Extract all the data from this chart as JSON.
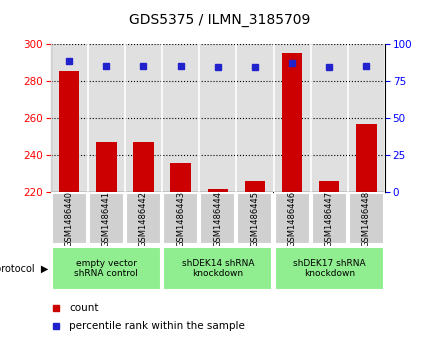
{
  "title": "GDS5375 / ILMN_3185709",
  "samples": [
    "GSM1486440",
    "GSM1486441",
    "GSM1486442",
    "GSM1486443",
    "GSM1486444",
    "GSM1486445",
    "GSM1486446",
    "GSM1486447",
    "GSM1486448"
  ],
  "counts": [
    285,
    247,
    247,
    236,
    222,
    226,
    295,
    226,
    257
  ],
  "percentile_ranks": [
    88,
    85,
    85,
    85,
    84,
    84,
    87,
    84,
    85
  ],
  "ylim_left": [
    220,
    300
  ],
  "ylim_right": [
    0,
    100
  ],
  "yticks_left": [
    220,
    240,
    260,
    280,
    300
  ],
  "yticks_right": [
    0,
    25,
    50,
    75,
    100
  ],
  "bar_color": "#cc0000",
  "dot_color": "#2222cc",
  "plot_bg_color": "#e0e0e0",
  "sample_box_color": "#d0d0d0",
  "group_green": "#90EE90",
  "group_spans": [
    [
      0,
      3,
      "empty vector\nshRNA control"
    ],
    [
      3,
      6,
      "shDEK14 shRNA\nknockdown"
    ],
    [
      6,
      9,
      "shDEK17 shRNA\nknockdown"
    ]
  ],
  "legend_count_label": "count",
  "legend_pct_label": "percentile rank within the sample",
  "figsize": [
    4.4,
    3.63
  ],
  "dpi": 100
}
